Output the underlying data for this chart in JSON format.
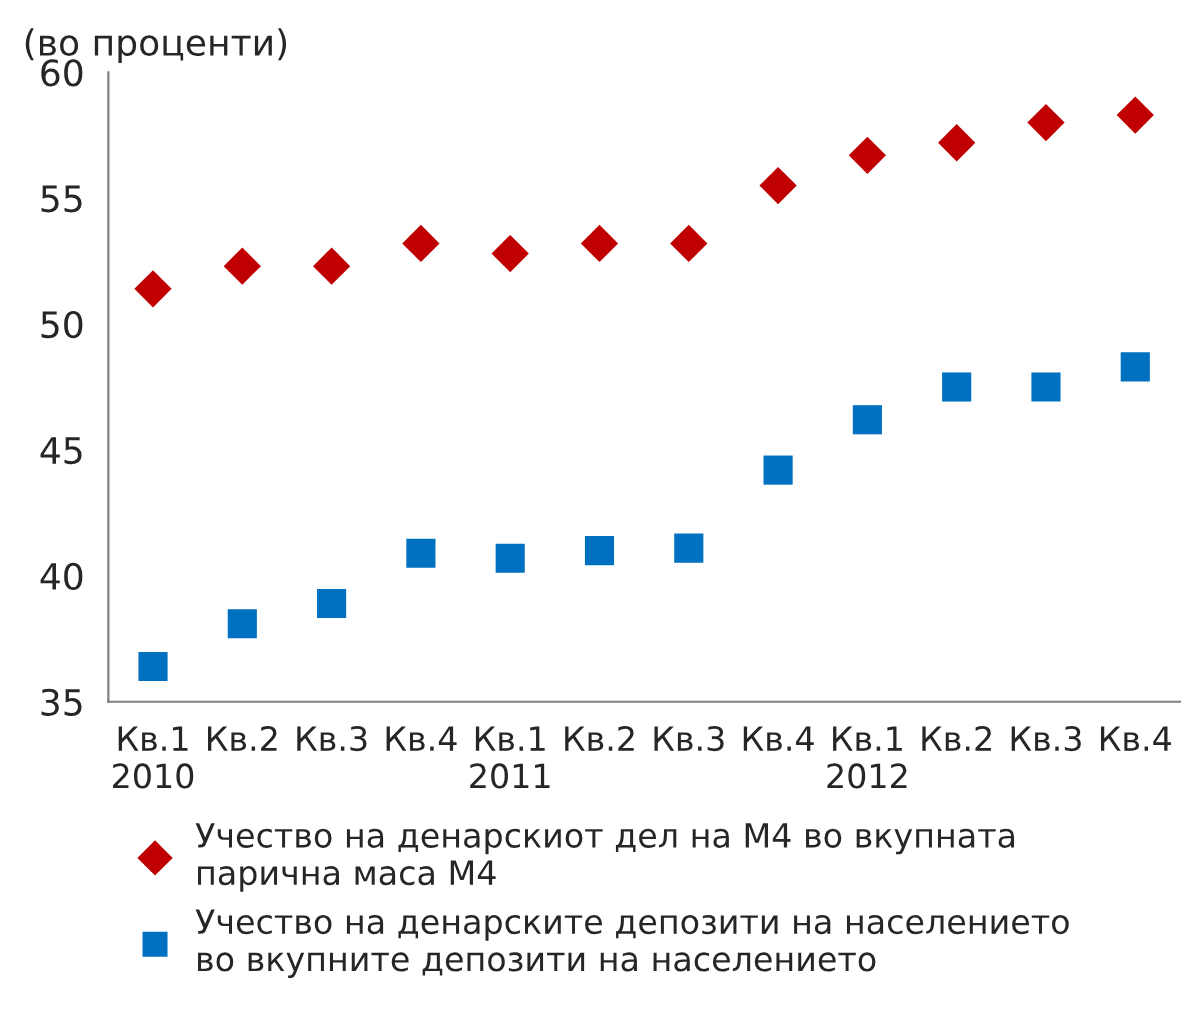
{
  "chart_data": {
    "type": "scatter",
    "title": "(во проценти)",
    "categories": [
      "Кв.1\n2010",
      "Кв.2",
      "Кв.3",
      "Кв.4",
      "Кв.1\n2011",
      "Кв.2",
      "Кв.3",
      "Кв.4",
      "Кв.1\n2012",
      "Кв.2",
      "Кв.3",
      "Кв.4"
    ],
    "series": [
      {
        "name": "Учество на денарскиот дел на М4 во вкупната\nпарична маса М4",
        "color": "#c00000",
        "marker": "diamond",
        "values": [
          51.4,
          52.3,
          52.3,
          53.2,
          52.8,
          53.2,
          53.2,
          55.5,
          56.7,
          57.2,
          58.0,
          58.3
        ]
      },
      {
        "name": "Учество на денарските депозити на населението\nво вкупните депозити на населението",
        "color": "#0070c0",
        "marker": "square",
        "values": [
          36.4,
          38.1,
          38.9,
          40.9,
          40.7,
          41.0,
          41.1,
          44.2,
          46.2,
          47.5,
          47.5,
          48.3
        ]
      }
    ],
    "ylim": [
      35,
      60
    ],
    "yticks": [
      35,
      40,
      45,
      50,
      55,
      60
    ],
    "grid": false,
    "legend": "bottom"
  }
}
